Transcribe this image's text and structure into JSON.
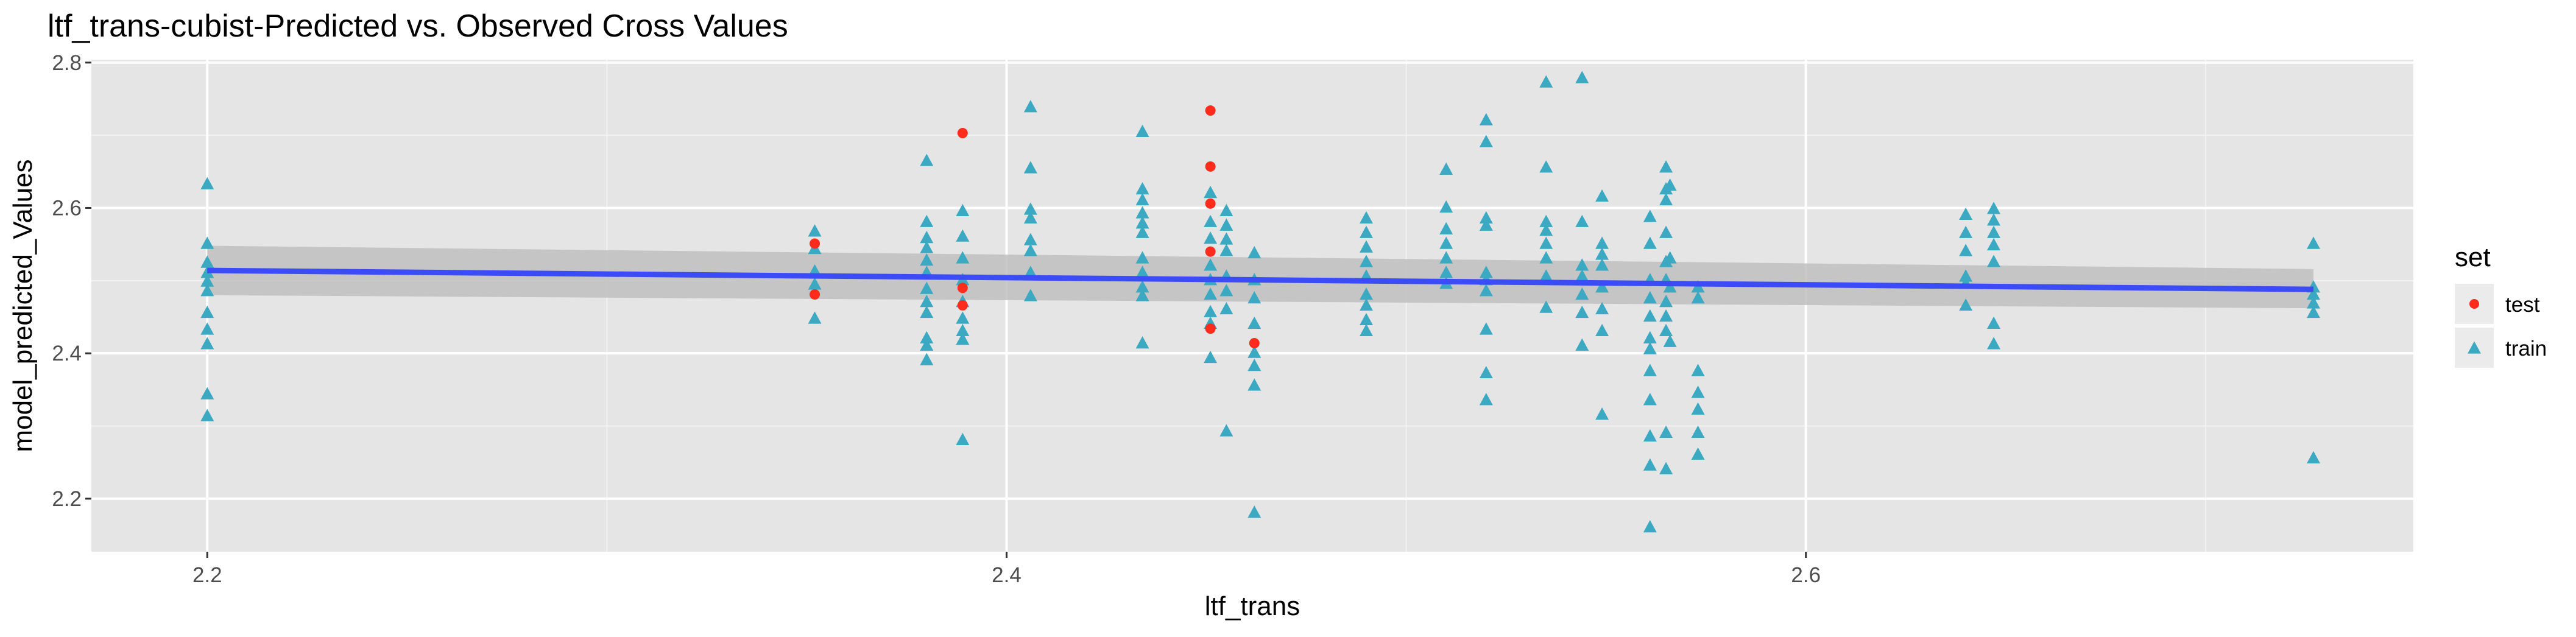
{
  "chart_data": {
    "type": "scatter",
    "title": "ltf_trans-cubist-Predicted vs. Observed Cross Values",
    "xlabel": "ltf_trans",
    "ylabel": "model_predicted_Values",
    "xlim": [
      2.171,
      2.752
    ],
    "ylim": [
      2.127,
      2.804
    ],
    "x_ticks": [
      2.2,
      2.4,
      2.6
    ],
    "x_tick_labels": [
      "2.2",
      "2.4",
      "2.6"
    ],
    "y_ticks": [
      2.2,
      2.4,
      2.6,
      2.8
    ],
    "y_tick_labels": [
      "2.2",
      "2.4",
      "2.6",
      "2.8"
    ],
    "grid": true,
    "legend": {
      "title": "set",
      "position": "right",
      "entries": [
        {
          "label": "test",
          "shape": "circle",
          "color": "#F8766D"
        },
        {
          "label": "train",
          "shape": "triangle",
          "color": "#00BFC4"
        }
      ]
    },
    "series": [
      {
        "name": "test",
        "shape": "circle",
        "color": "#ff2b1c",
        "points": [
          [
            2.352,
            2.551
          ],
          [
            2.352,
            2.481
          ],
          [
            2.389,
            2.703
          ],
          [
            2.389,
            2.49
          ],
          [
            2.389,
            2.466
          ],
          [
            2.451,
            2.734
          ],
          [
            2.451,
            2.657
          ],
          [
            2.451,
            2.606
          ],
          [
            2.451,
            2.54
          ],
          [
            2.451,
            2.434
          ],
          [
            2.462,
            2.414
          ]
        ]
      },
      {
        "name": "train",
        "shape": "triangle",
        "color": "#3aa9c1",
        "points": [
          [
            2.2,
            2.632
          ],
          [
            2.2,
            2.55
          ],
          [
            2.2,
            2.524
          ],
          [
            2.2,
            2.51
          ],
          [
            2.2,
            2.498
          ],
          [
            2.2,
            2.485
          ],
          [
            2.2,
            2.455
          ],
          [
            2.2,
            2.432
          ],
          [
            2.2,
            2.412
          ],
          [
            2.2,
            2.343
          ],
          [
            2.2,
            2.313
          ],
          [
            2.352,
            2.567
          ],
          [
            2.352,
            2.543
          ],
          [
            2.352,
            2.512
          ],
          [
            2.352,
            2.494
          ],
          [
            2.352,
            2.447
          ],
          [
            2.38,
            2.664
          ],
          [
            2.38,
            2.58
          ],
          [
            2.38,
            2.558
          ],
          [
            2.38,
            2.544
          ],
          [
            2.38,
            2.527
          ],
          [
            2.38,
            2.51
          ],
          [
            2.38,
            2.488
          ],
          [
            2.38,
            2.47
          ],
          [
            2.38,
            2.455
          ],
          [
            2.38,
            2.42
          ],
          [
            2.38,
            2.41
          ],
          [
            2.38,
            2.39
          ],
          [
            2.389,
            2.595
          ],
          [
            2.389,
            2.56
          ],
          [
            2.389,
            2.53
          ],
          [
            2.389,
            2.5
          ],
          [
            2.389,
            2.47
          ],
          [
            2.389,
            2.447
          ],
          [
            2.389,
            2.43
          ],
          [
            2.389,
            2.418
          ],
          [
            2.389,
            2.28
          ],
          [
            2.406,
            2.738
          ],
          [
            2.406,
            2.654
          ],
          [
            2.406,
            2.597
          ],
          [
            2.406,
            2.585
          ],
          [
            2.406,
            2.555
          ],
          [
            2.406,
            2.54
          ],
          [
            2.406,
            2.51
          ],
          [
            2.406,
            2.478
          ],
          [
            2.434,
            2.704
          ],
          [
            2.434,
            2.625
          ],
          [
            2.434,
            2.61
          ],
          [
            2.434,
            2.592
          ],
          [
            2.434,
            2.578
          ],
          [
            2.434,
            2.565
          ],
          [
            2.434,
            2.53
          ],
          [
            2.434,
            2.51
          ],
          [
            2.434,
            2.49
          ],
          [
            2.434,
            2.478
          ],
          [
            2.434,
            2.413
          ],
          [
            2.451,
            2.62
          ],
          [
            2.451,
            2.58
          ],
          [
            2.451,
            2.557
          ],
          [
            2.451,
            2.52
          ],
          [
            2.451,
            2.5
          ],
          [
            2.451,
            2.48
          ],
          [
            2.451,
            2.456
          ],
          [
            2.451,
            2.44
          ],
          [
            2.451,
            2.393
          ],
          [
            2.455,
            2.595
          ],
          [
            2.455,
            2.575
          ],
          [
            2.455,
            2.556
          ],
          [
            2.455,
            2.54
          ],
          [
            2.455,
            2.505
          ],
          [
            2.455,
            2.485
          ],
          [
            2.455,
            2.46
          ],
          [
            2.455,
            2.292
          ],
          [
            2.462,
            2.537
          ],
          [
            2.462,
            2.5
          ],
          [
            2.462,
            2.475
          ],
          [
            2.462,
            2.44
          ],
          [
            2.462,
            2.4
          ],
          [
            2.462,
            2.382
          ],
          [
            2.462,
            2.355
          ],
          [
            2.462,
            2.18
          ],
          [
            2.49,
            2.585
          ],
          [
            2.49,
            2.565
          ],
          [
            2.49,
            2.545
          ],
          [
            2.49,
            2.525
          ],
          [
            2.49,
            2.505
          ],
          [
            2.49,
            2.48
          ],
          [
            2.49,
            2.465
          ],
          [
            2.49,
            2.445
          ],
          [
            2.49,
            2.43
          ],
          [
            2.51,
            2.652
          ],
          [
            2.51,
            2.6
          ],
          [
            2.51,
            2.57
          ],
          [
            2.51,
            2.55
          ],
          [
            2.51,
            2.53
          ],
          [
            2.51,
            2.51
          ],
          [
            2.51,
            2.495
          ],
          [
            2.52,
            2.72
          ],
          [
            2.52,
            2.69
          ],
          [
            2.52,
            2.585
          ],
          [
            2.52,
            2.575
          ],
          [
            2.52,
            2.51
          ],
          [
            2.52,
            2.5
          ],
          [
            2.52,
            2.485
          ],
          [
            2.52,
            2.432
          ],
          [
            2.52,
            2.372
          ],
          [
            2.52,
            2.335
          ],
          [
            2.535,
            2.772
          ],
          [
            2.535,
            2.655
          ],
          [
            2.535,
            2.58
          ],
          [
            2.535,
            2.568
          ],
          [
            2.535,
            2.55
          ],
          [
            2.535,
            2.53
          ],
          [
            2.535,
            2.505
          ],
          [
            2.535,
            2.462
          ],
          [
            2.544,
            2.778
          ],
          [
            2.544,
            2.58
          ],
          [
            2.544,
            2.52
          ],
          [
            2.544,
            2.505
          ],
          [
            2.544,
            2.48
          ],
          [
            2.544,
            2.455
          ],
          [
            2.544,
            2.41
          ],
          [
            2.549,
            2.615
          ],
          [
            2.549,
            2.55
          ],
          [
            2.549,
            2.535
          ],
          [
            2.549,
            2.52
          ],
          [
            2.549,
            2.49
          ],
          [
            2.549,
            2.46
          ],
          [
            2.549,
            2.43
          ],
          [
            2.549,
            2.315
          ],
          [
            2.561,
            2.587
          ],
          [
            2.561,
            2.55
          ],
          [
            2.561,
            2.5
          ],
          [
            2.561,
            2.475
          ],
          [
            2.561,
            2.45
          ],
          [
            2.561,
            2.42
          ],
          [
            2.561,
            2.405
          ],
          [
            2.561,
            2.375
          ],
          [
            2.561,
            2.335
          ],
          [
            2.561,
            2.285
          ],
          [
            2.561,
            2.245
          ],
          [
            2.561,
            2.16
          ],
          [
            2.565,
            2.655
          ],
          [
            2.565,
            2.625
          ],
          [
            2.565,
            2.61
          ],
          [
            2.565,
            2.565
          ],
          [
            2.565,
            2.525
          ],
          [
            2.565,
            2.5
          ],
          [
            2.565,
            2.47
          ],
          [
            2.565,
            2.45
          ],
          [
            2.565,
            2.43
          ],
          [
            2.565,
            2.29
          ],
          [
            2.565,
            2.24
          ],
          [
            2.566,
            2.63
          ],
          [
            2.566,
            2.53
          ],
          [
            2.566,
            2.49
          ],
          [
            2.566,
            2.415
          ],
          [
            2.573,
            2.49
          ],
          [
            2.573,
            2.475
          ],
          [
            2.573,
            2.375
          ],
          [
            2.573,
            2.345
          ],
          [
            2.573,
            2.322
          ],
          [
            2.573,
            2.29
          ],
          [
            2.573,
            2.26
          ],
          [
            2.64,
            2.59
          ],
          [
            2.64,
            2.565
          ],
          [
            2.64,
            2.54
          ],
          [
            2.64,
            2.505
          ],
          [
            2.64,
            2.495
          ],
          [
            2.64,
            2.465
          ],
          [
            2.647,
            2.598
          ],
          [
            2.647,
            2.582
          ],
          [
            2.647,
            2.565
          ],
          [
            2.647,
            2.548
          ],
          [
            2.647,
            2.525
          ],
          [
            2.647,
            2.44
          ],
          [
            2.647,
            2.412
          ],
          [
            2.727,
            2.55
          ],
          [
            2.727,
            2.49
          ],
          [
            2.727,
            2.48
          ],
          [
            2.727,
            2.468
          ],
          [
            2.727,
            2.455
          ],
          [
            2.727,
            2.255
          ]
        ]
      }
    ],
    "trend": {
      "method": "linear",
      "color": "#3b4cf6",
      "ribbon_color": "#bfbfbf",
      "x": [
        2.2,
        2.727
      ],
      "y": [
        2.514,
        2.488
      ],
      "lower": [
        2.48,
        2.462
      ],
      "upper": [
        2.548,
        2.516
      ]
    }
  }
}
